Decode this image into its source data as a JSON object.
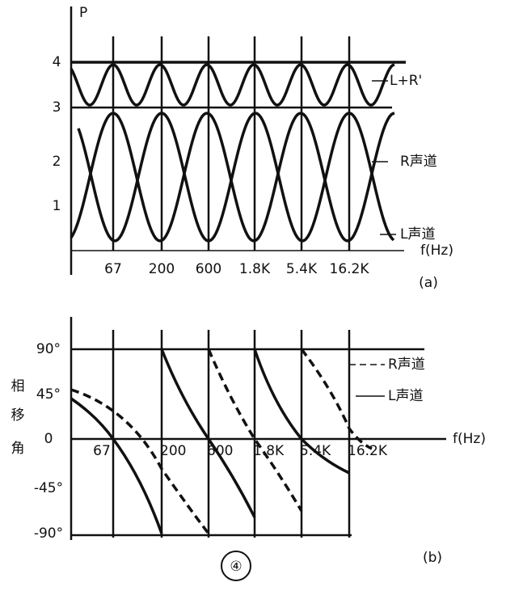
{
  "panel_a": {
    "y_axis_label": "P",
    "y_labels": [
      "4",
      "3",
      "2",
      "1"
    ],
    "x_labels": [
      "67",
      "200",
      "600",
      "1.8K",
      "5.4K",
      "16.2K"
    ],
    "x_axis_label": "f(Hz)",
    "curve_labels": [
      "L+R'",
      "R声道",
      "L声道"
    ],
    "caption": "(a)"
  },
  "panel_b": {
    "y_axis_label": [
      "相",
      "移",
      "角"
    ],
    "y_labels": [
      "90°",
      "45°",
      "0",
      "-45°",
      "-90°"
    ],
    "x_labels": [
      "67",
      "200",
      "600",
      "1.8K",
      "5.4K",
      "16.2K"
    ],
    "x_axis_label": "f(Hz)",
    "legend": [
      "R声道",
      "L声道"
    ],
    "caption": "(b)"
  },
  "figure_number": "④"
}
